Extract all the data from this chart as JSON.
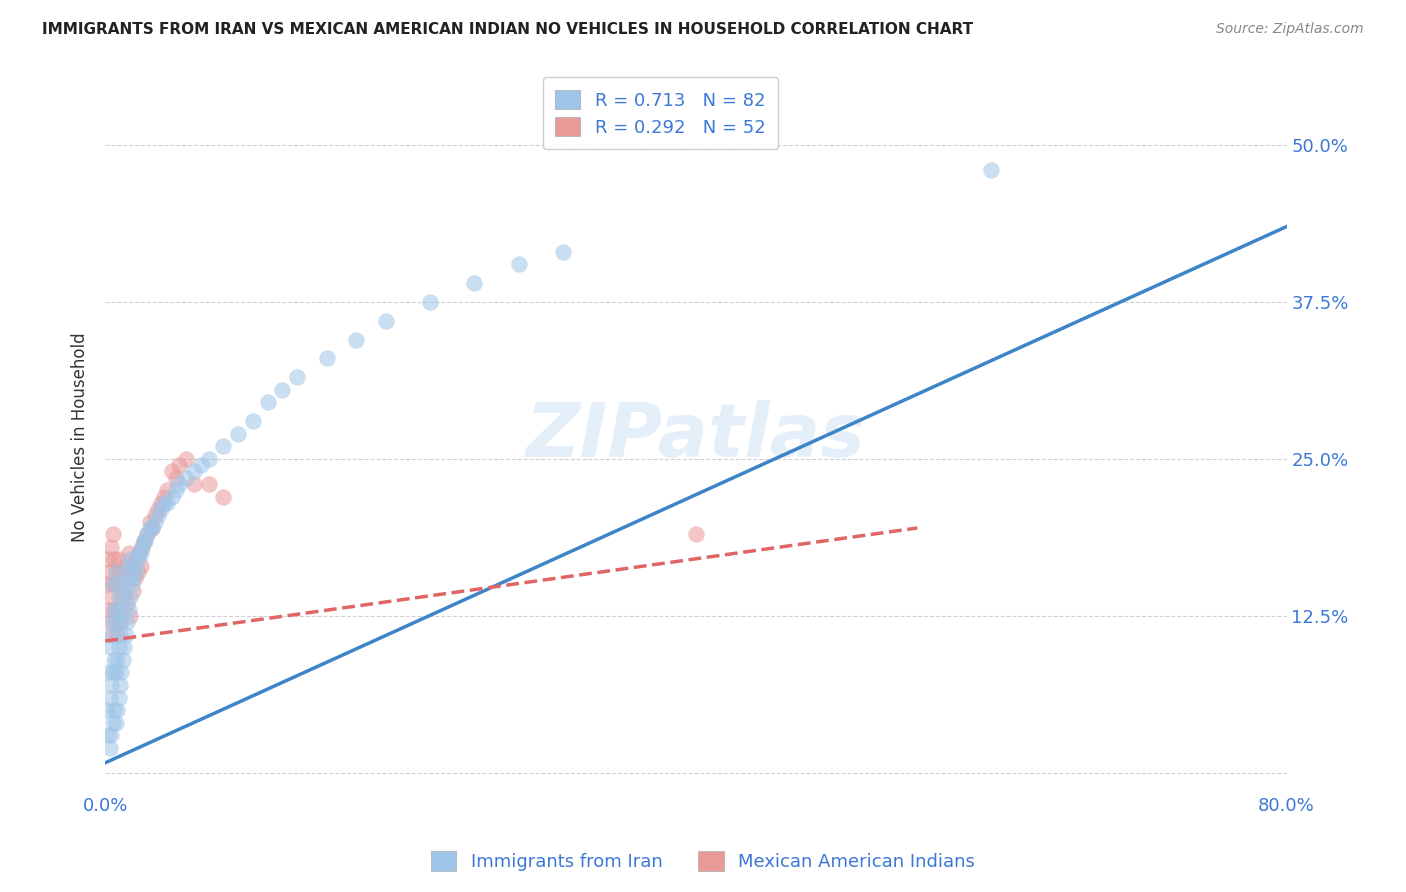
{
  "title": "IMMIGRANTS FROM IRAN VS MEXICAN AMERICAN INDIAN NO VEHICLES IN HOUSEHOLD CORRELATION CHART",
  "source": "Source: ZipAtlas.com",
  "ylabel": "No Vehicles in Household",
  "xlim": [
    0.0,
    0.8
  ],
  "ylim": [
    -0.015,
    0.55
  ],
  "xticks": [
    0.0,
    0.1,
    0.2,
    0.3,
    0.4,
    0.5,
    0.6,
    0.7,
    0.8
  ],
  "xticklabels": [
    "0.0%",
    "",
    "",
    "",
    "",
    "",
    "",
    "",
    "80.0%"
  ],
  "yticks": [
    0.0,
    0.125,
    0.25,
    0.375,
    0.5
  ],
  "yticklabels": [
    "",
    "12.5%",
    "25.0%",
    "37.5%",
    "50.0%"
  ],
  "watermark": "ZIPatlas",
  "blue_color": "#9fc5e8",
  "pink_color": "#ea9999",
  "blue_line_color": "#3d85c8",
  "pink_line_color": "#e06666",
  "grid_color": "#cccccc",
  "R_blue": 0.713,
  "N_blue": 82,
  "R_pink": 0.292,
  "N_pink": 52,
  "legend_label_blue": "Immigrants from Iran",
  "legend_label_pink": "Mexican American Indians",
  "title_color": "#222222",
  "tick_label_color": "#3c78d8",
  "blue_scatter_x": [
    0.001,
    0.002,
    0.002,
    0.003,
    0.003,
    0.003,
    0.004,
    0.004,
    0.004,
    0.005,
    0.005,
    0.005,
    0.005,
    0.006,
    0.006,
    0.006,
    0.007,
    0.007,
    0.007,
    0.007,
    0.008,
    0.008,
    0.008,
    0.009,
    0.009,
    0.009,
    0.01,
    0.01,
    0.01,
    0.011,
    0.011,
    0.012,
    0.012,
    0.013,
    0.013,
    0.014,
    0.014,
    0.015,
    0.015,
    0.016,
    0.016,
    0.017,
    0.017,
    0.018,
    0.019,
    0.02,
    0.021,
    0.022,
    0.023,
    0.024,
    0.025,
    0.026,
    0.027,
    0.028,
    0.03,
    0.032,
    0.034,
    0.036,
    0.038,
    0.04,
    0.042,
    0.045,
    0.048,
    0.05,
    0.055,
    0.06,
    0.065,
    0.07,
    0.08,
    0.09,
    0.1,
    0.11,
    0.12,
    0.13,
    0.15,
    0.17,
    0.19,
    0.22,
    0.25,
    0.28,
    0.31,
    0.6
  ],
  "blue_scatter_y": [
    0.05,
    0.03,
    0.08,
    0.02,
    0.06,
    0.1,
    0.03,
    0.07,
    0.11,
    0.04,
    0.08,
    0.12,
    0.15,
    0.05,
    0.09,
    0.13,
    0.04,
    0.08,
    0.12,
    0.16,
    0.05,
    0.09,
    0.13,
    0.06,
    0.1,
    0.14,
    0.07,
    0.11,
    0.15,
    0.08,
    0.12,
    0.09,
    0.13,
    0.1,
    0.14,
    0.11,
    0.15,
    0.12,
    0.16,
    0.13,
    0.165,
    0.14,
    0.17,
    0.15,
    0.155,
    0.16,
    0.165,
    0.17,
    0.175,
    0.175,
    0.18,
    0.185,
    0.185,
    0.19,
    0.195,
    0.195,
    0.2,
    0.205,
    0.21,
    0.215,
    0.215,
    0.22,
    0.225,
    0.23,
    0.235,
    0.24,
    0.245,
    0.25,
    0.26,
    0.27,
    0.28,
    0.295,
    0.305,
    0.315,
    0.33,
    0.345,
    0.36,
    0.375,
    0.39,
    0.405,
    0.415,
    0.48
  ],
  "pink_scatter_x": [
    0.001,
    0.002,
    0.002,
    0.003,
    0.003,
    0.004,
    0.004,
    0.005,
    0.005,
    0.005,
    0.006,
    0.006,
    0.007,
    0.007,
    0.008,
    0.008,
    0.009,
    0.009,
    0.01,
    0.01,
    0.011,
    0.012,
    0.013,
    0.014,
    0.015,
    0.016,
    0.017,
    0.018,
    0.019,
    0.02,
    0.021,
    0.022,
    0.023,
    0.024,
    0.025,
    0.026,
    0.028,
    0.03,
    0.032,
    0.034,
    0.036,
    0.038,
    0.04,
    0.042,
    0.045,
    0.048,
    0.05,
    0.055,
    0.06,
    0.07,
    0.08,
    0.4
  ],
  "pink_scatter_y": [
    0.15,
    0.13,
    0.17,
    0.12,
    0.16,
    0.14,
    0.18,
    0.11,
    0.15,
    0.19,
    0.13,
    0.17,
    0.12,
    0.16,
    0.11,
    0.15,
    0.13,
    0.17,
    0.12,
    0.16,
    0.14,
    0.155,
    0.145,
    0.165,
    0.135,
    0.175,
    0.125,
    0.165,
    0.145,
    0.155,
    0.17,
    0.16,
    0.175,
    0.165,
    0.18,
    0.185,
    0.19,
    0.2,
    0.195,
    0.205,
    0.21,
    0.215,
    0.22,
    0.225,
    0.24,
    0.235,
    0.245,
    0.25,
    0.23,
    0.23,
    0.22,
    0.19
  ],
  "blue_trendline_x": [
    0.0,
    0.8
  ],
  "blue_trendline_y": [
    0.008,
    0.435
  ],
  "pink_trendline_x": [
    0.0,
    0.55
  ],
  "pink_trendline_y": [
    0.105,
    0.195
  ]
}
